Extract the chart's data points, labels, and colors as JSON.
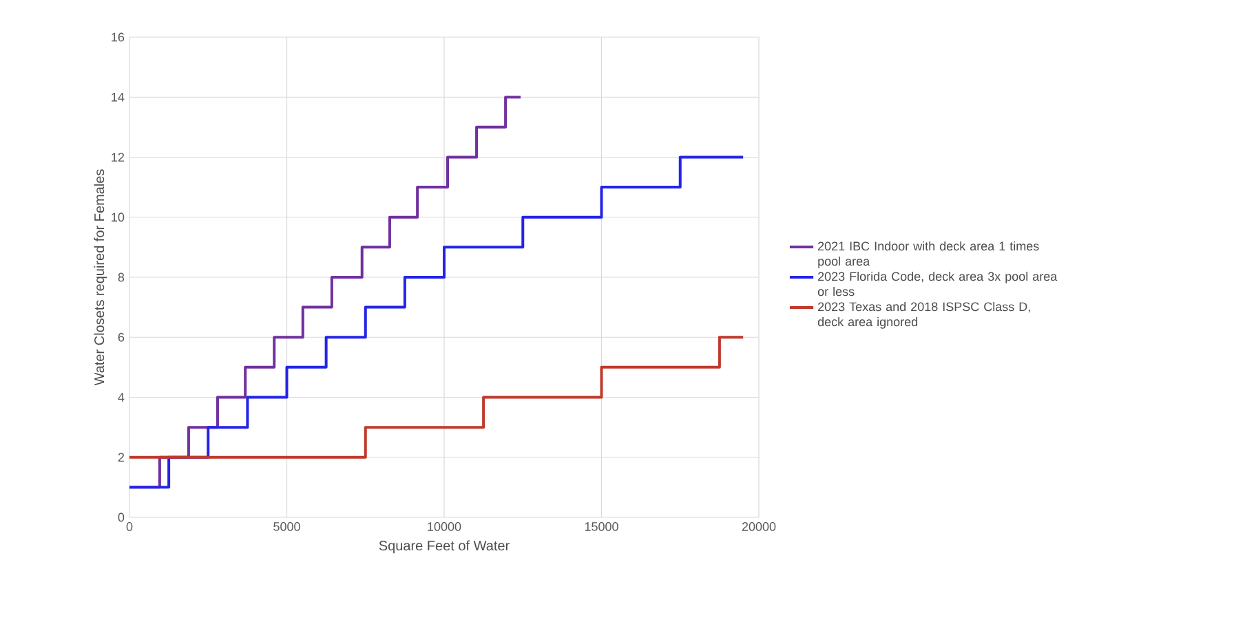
{
  "chart_data": {
    "type": "step",
    "xlabel": "Square Feet of Water",
    "ylabel": "Water Closets required for Females",
    "xlim": [
      0,
      20000
    ],
    "ylim": [
      0,
      16
    ],
    "xticks": [
      0,
      5000,
      10000,
      15000,
      20000
    ],
    "yticks": [
      0,
      2,
      4,
      6,
      8,
      10,
      12,
      14,
      16
    ],
    "grid": true,
    "legend": "right",
    "marker": "none",
    "line_style": "solid",
    "series": [
      {
        "name": "2021 IBC Indoor with deck area 1 times pool area",
        "color": "#7030a0",
        "x": [
          0,
          960,
          1880,
          2800,
          3680,
          4600,
          5510,
          6430,
          7390,
          8270,
          9150,
          10110,
          11030,
          11950,
          12430
        ],
        "values": [
          1,
          2,
          3,
          4,
          5,
          6,
          7,
          8,
          9,
          10,
          11,
          12,
          13,
          14,
          14
        ]
      },
      {
        "name": "2023 Florida Code, deck area 3x pool area or less",
        "color": "#2424e8",
        "x": [
          0,
          1250,
          2500,
          3750,
          5000,
          6250,
          7500,
          8750,
          10000,
          12500,
          15000,
          17500,
          19500
        ],
        "values": [
          1,
          2,
          3,
          4,
          5,
          6,
          7,
          8,
          9,
          10,
          11,
          12,
          12
        ]
      },
      {
        "name": "2023 Texas and 2018 ISPSC Class D, deck area ignored",
        "color": "#c0392b",
        "x": [
          0,
          7500,
          11250,
          15000,
          18750,
          19500
        ],
        "values": [
          2,
          3,
          4,
          5,
          6,
          6
        ]
      }
    ]
  }
}
